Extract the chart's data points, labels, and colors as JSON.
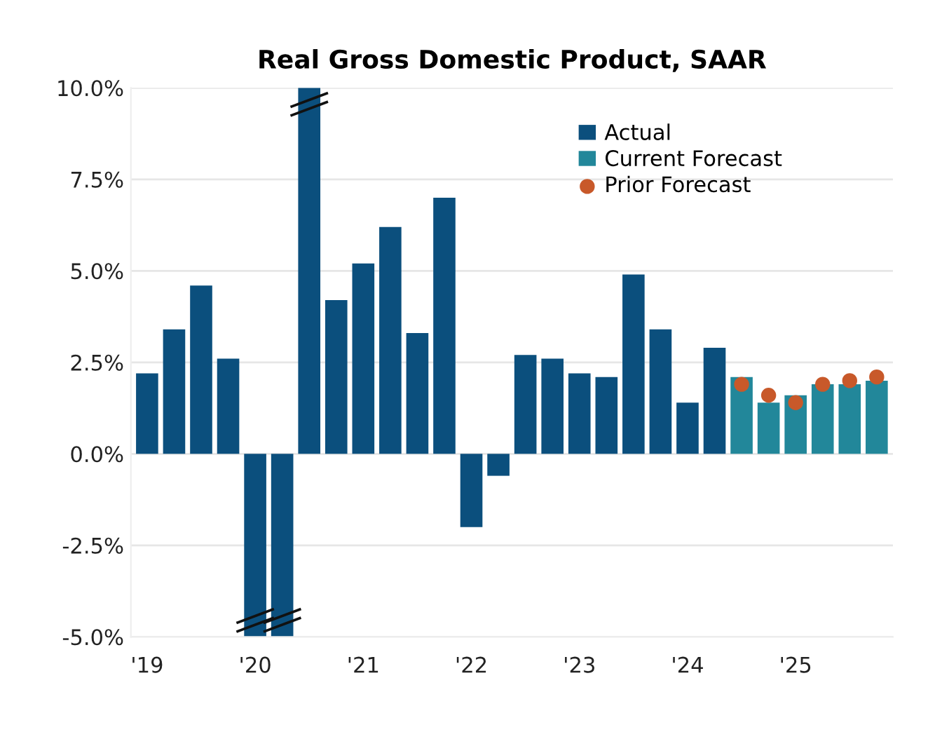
{
  "chart_data": {
    "type": "bar",
    "title": "Real Gross Domestic Product, SAAR",
    "categories": [
      "'19",
      null,
      null,
      null,
      "'20",
      null,
      null,
      null,
      "'21",
      null,
      null,
      null,
      "'22",
      null,
      null,
      null,
      "'23",
      null,
      null,
      null,
      "'24",
      null,
      null,
      null,
      "'25",
      null,
      null,
      null
    ],
    "series": [
      {
        "name": "Actual",
        "color": "#0b4f7d",
        "values": [
          2.2,
          3.4,
          4.6,
          2.6,
          -5.0,
          -5.0,
          10.0,
          4.2,
          5.2,
          6.2,
          3.3,
          7.0,
          -2.0,
          -0.6,
          2.7,
          2.6,
          2.2,
          2.1,
          4.9,
          3.4,
          1.4,
          2.9,
          null,
          null,
          null,
          null,
          null,
          null
        ]
      },
      {
        "name": "Current Forecast",
        "color": "#22879a",
        "values": [
          null,
          null,
          null,
          null,
          null,
          null,
          null,
          null,
          null,
          null,
          null,
          null,
          null,
          null,
          null,
          null,
          null,
          null,
          null,
          null,
          null,
          null,
          2.1,
          1.4,
          1.6,
          1.9,
          1.9,
          2.0
        ]
      },
      {
        "name": "Prior Forecast",
        "type": "scatter",
        "color": "#c8592a",
        "values": [
          null,
          null,
          null,
          null,
          null,
          null,
          null,
          null,
          null,
          null,
          null,
          null,
          null,
          null,
          null,
          null,
          null,
          null,
          null,
          null,
          null,
          null,
          1.9,
          1.6,
          1.4,
          1.9,
          2.0,
          2.1
        ]
      }
    ],
    "ylim": [
      -5.0,
      10.0
    ],
    "yticks": [
      {
        "value": -5.0,
        "label": "-5.0%"
      },
      {
        "value": -2.5,
        "label": "-2.5%"
      },
      {
        "value": 0.0,
        "label": "0.0%"
      },
      {
        "value": 2.5,
        "label": "2.5%"
      },
      {
        "value": 5.0,
        "label": "5.0%"
      },
      {
        "value": 7.5,
        "label": "7.5%"
      },
      {
        "value": 10.0,
        "label": "10.0%"
      }
    ],
    "grid": "y",
    "legend": "top right",
    "marker": "circle"
  }
}
